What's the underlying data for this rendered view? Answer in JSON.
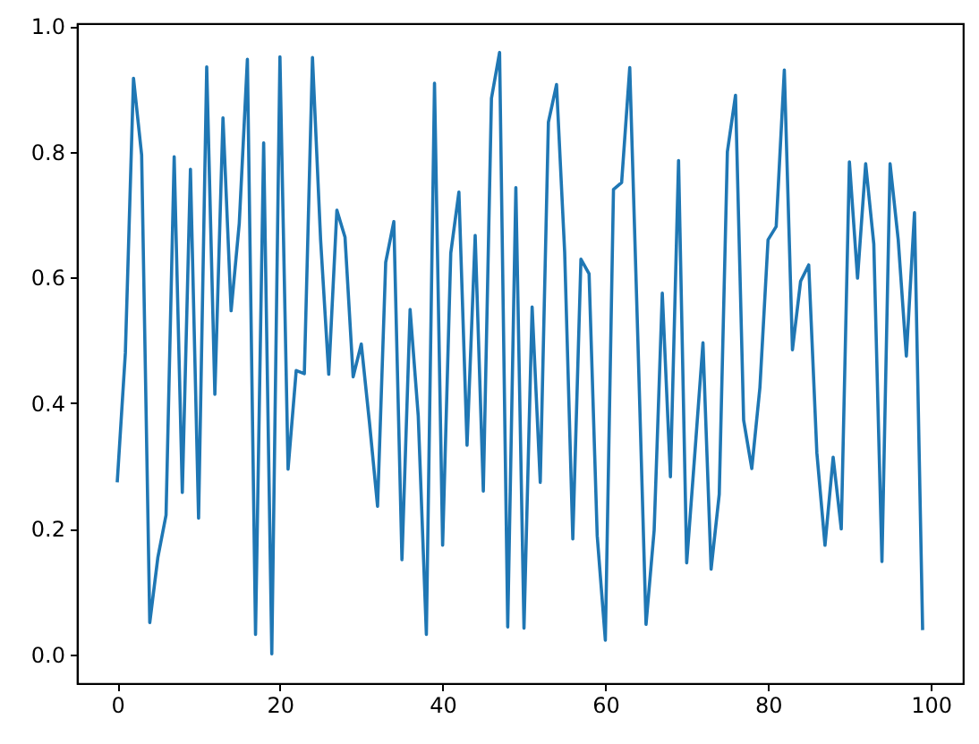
{
  "chart_data": {
    "type": "line",
    "x": [
      0,
      1,
      2,
      3,
      4,
      5,
      6,
      7,
      8,
      9,
      10,
      11,
      12,
      13,
      14,
      15,
      16,
      17,
      18,
      19,
      20,
      21,
      22,
      23,
      24,
      25,
      26,
      27,
      28,
      29,
      30,
      31,
      32,
      33,
      34,
      35,
      36,
      37,
      38,
      39,
      40,
      41,
      42,
      43,
      44,
      45,
      46,
      47,
      48,
      49,
      50,
      51,
      52,
      53,
      54,
      55,
      56,
      57,
      58,
      59,
      60,
      61,
      62,
      63,
      64,
      65,
      66,
      67,
      68,
      69,
      70,
      71,
      72,
      73,
      74,
      75,
      76,
      77,
      78,
      79,
      80,
      81,
      82,
      83,
      84,
      85,
      86,
      87,
      88,
      89,
      90,
      91,
      92,
      93,
      94,
      95,
      96,
      97,
      98,
      99
    ],
    "series": [
      {
        "color": "#1f77b4",
        "values": [
          0.274,
          0.48,
          0.917,
          0.795,
          0.051,
          0.155,
          0.222,
          0.792,
          0.258,
          0.772,
          0.217,
          0.935,
          0.414,
          0.854,
          0.547,
          0.686,
          0.947,
          0.032,
          0.814,
          0.001,
          0.951,
          0.295,
          0.452,
          0.447,
          0.95,
          0.66,
          0.446,
          0.707,
          0.664,
          0.442,
          0.494,
          0.37,
          0.236,
          0.624,
          0.689,
          0.151,
          0.549,
          0.38,
          0.032,
          0.909,
          0.174,
          0.639,
          0.736,
          0.333,
          0.667,
          0.26,
          0.885,
          0.958,
          0.044,
          0.743,
          0.042,
          0.553,
          0.274,
          0.847,
          0.907,
          0.64,
          0.184,
          0.629,
          0.606,
          0.189,
          0.023,
          0.74,
          0.751,
          0.934,
          0.5,
          0.048,
          0.198,
          0.575,
          0.283,
          0.786,
          0.146,
          0.32,
          0.496,
          0.136,
          0.255,
          0.8,
          0.89,
          0.373,
          0.296,
          0.425,
          0.66,
          0.681,
          0.93,
          0.485,
          0.594,
          0.62,
          0.321,
          0.174,
          0.314,
          0.2,
          0.784,
          0.599,
          0.781,
          0.653,
          0.148,
          0.781,
          0.66,
          0.475,
          0.703,
          0.039
        ]
      }
    ],
    "xlim": [
      -4.95,
      103.95
    ],
    "ylim": [
      -0.0455,
      1.0045
    ],
    "xticks": [
      0,
      20,
      40,
      60,
      80,
      100
    ],
    "yticks": [
      {
        "value": 0,
        "label": "0.0"
      },
      0.2,
      0.4,
      0.6,
      0.8,
      {
        "value": 1,
        "label": "1.0"
      }
    ],
    "grid": false,
    "marker": "none",
    "line_style": "solid"
  }
}
